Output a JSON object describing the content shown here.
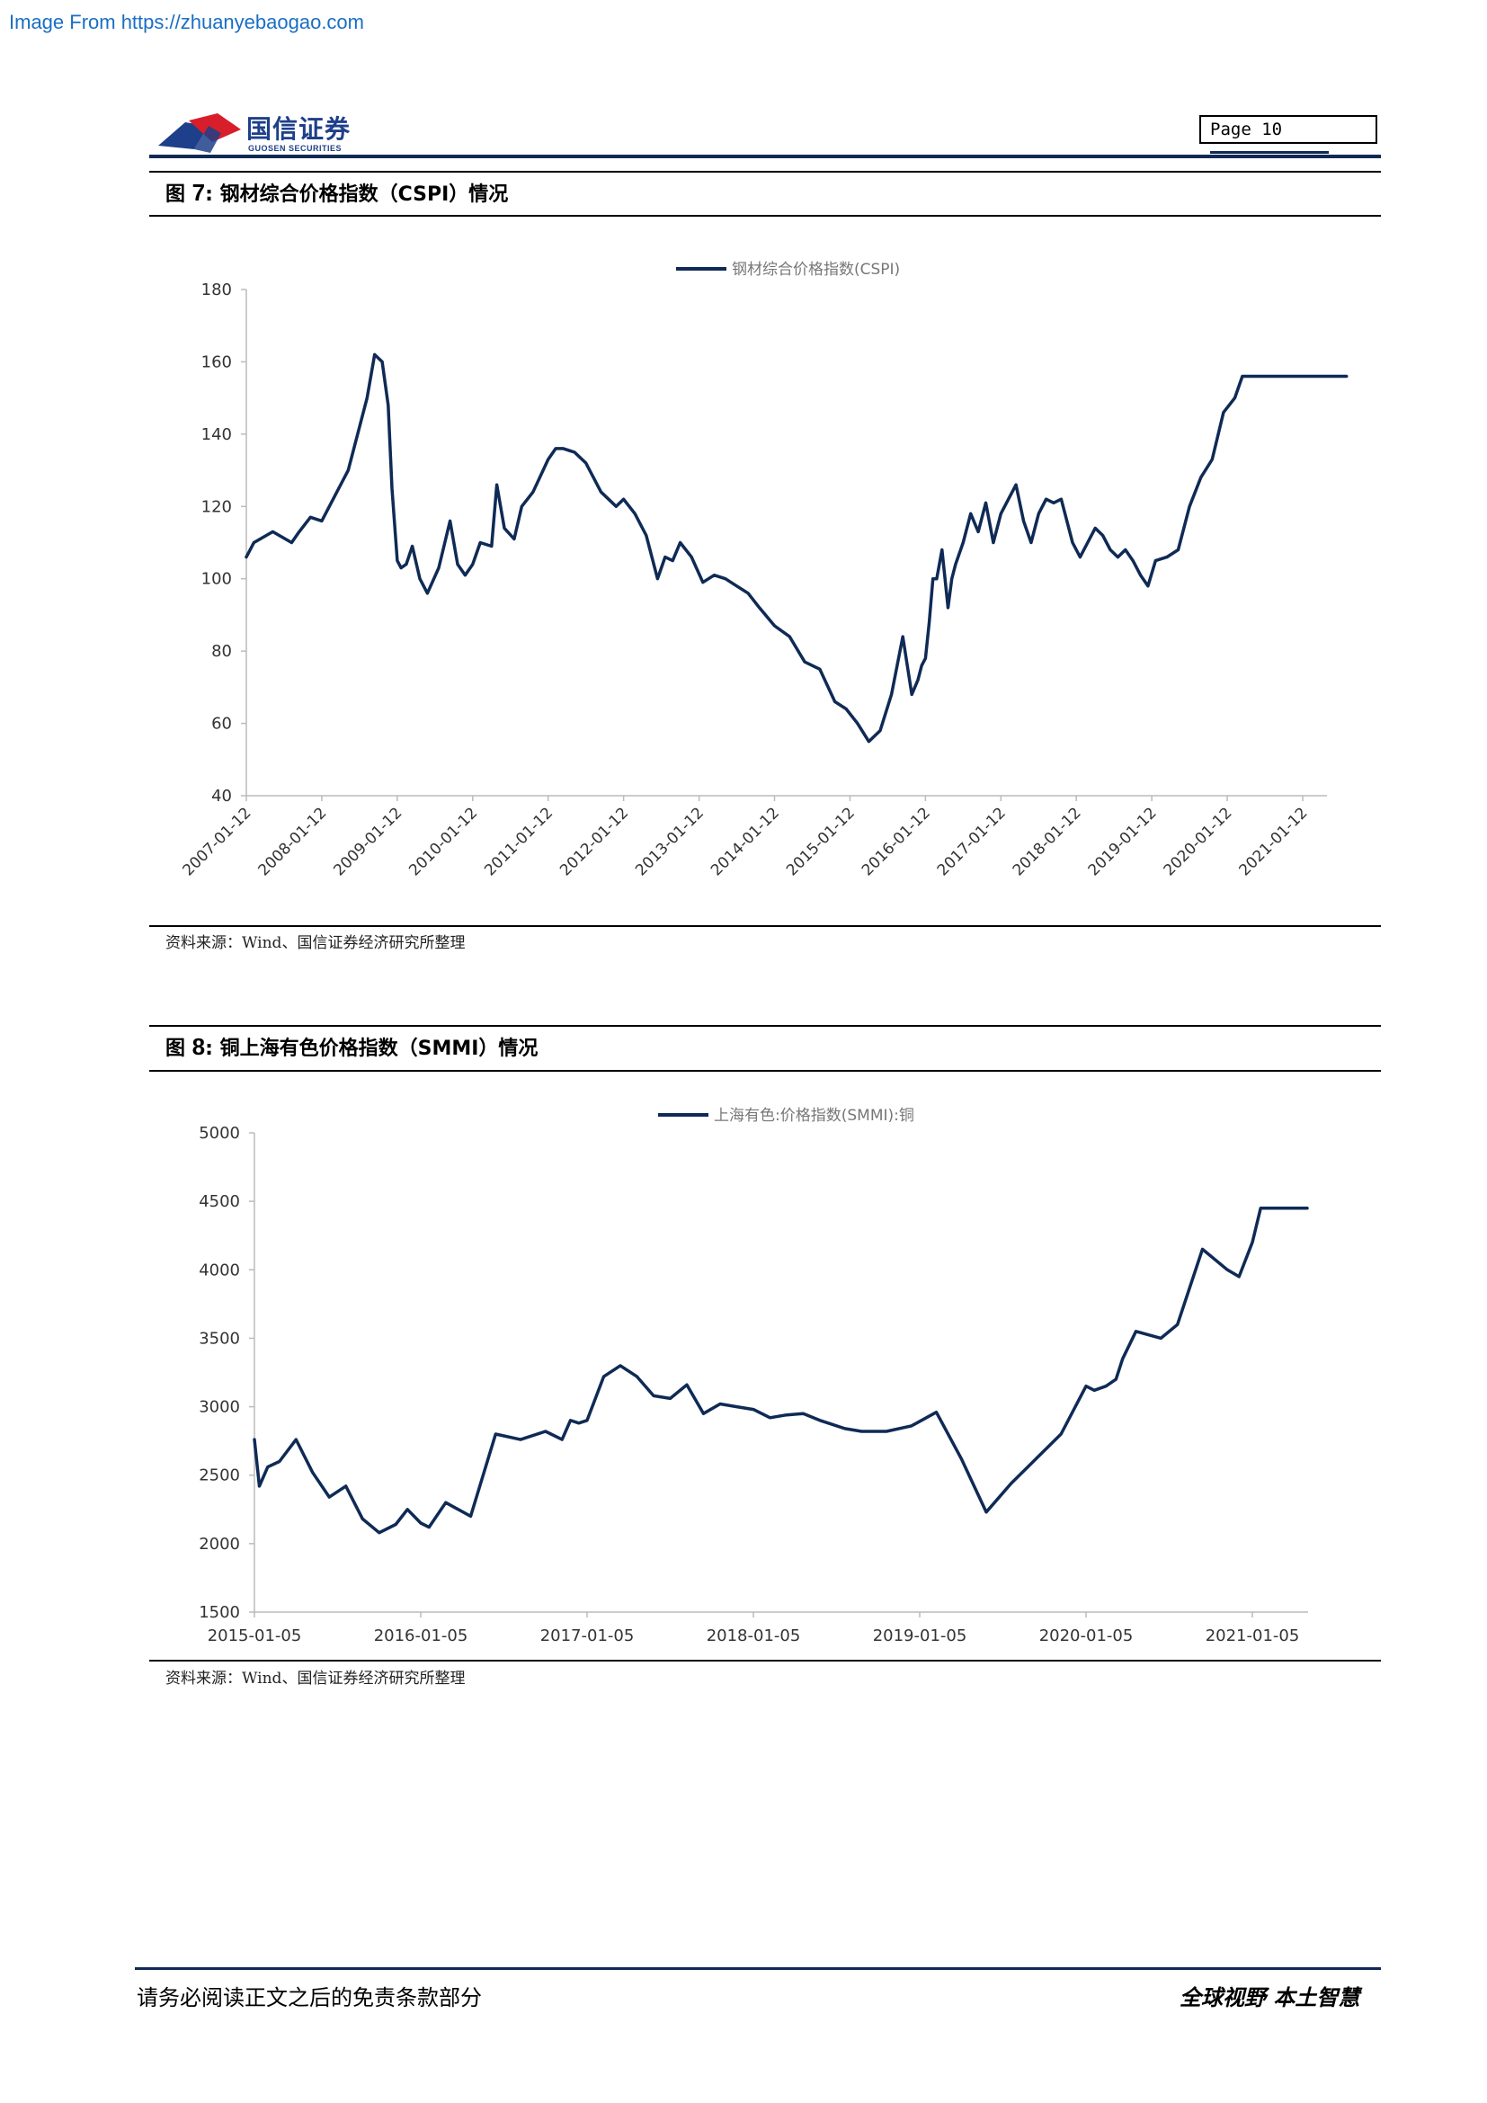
{
  "banner": "Image From https://zhuanyebaogao.com",
  "header": {
    "logo_cn": "国信证券",
    "logo_en": "GUOSEN SECURITIES",
    "page_label": "Page  10"
  },
  "figures": [
    {
      "title_prefix": "图 ",
      "title_num": "7",
      "title_text": ":  钢材综合价格指数（CSPI）情况",
      "source": "资料来源：Wind、国信证券经济研究所整理"
    },
    {
      "title_prefix": "图 ",
      "title_num": "8",
      "title_text": ":  铜上海有色价格指数（SMMI）情况",
      "source": "资料来源：Wind、国信证券经济研究所整理"
    }
  ],
  "chart_data": [
    {
      "type": "line",
      "title": "",
      "series": [
        {
          "name": "钢材综合价格指数(CSPI)",
          "color": "#0f2a55",
          "x": [
            2007.0,
            2007.1,
            2007.35,
            2007.6,
            2007.7,
            2007.85,
            2008.0,
            2008.2,
            2008.35,
            2008.5,
            2008.6,
            2008.7,
            2008.8,
            2008.88,
            2008.93,
            2009.0,
            2009.05,
            2009.12,
            2009.2,
            2009.3,
            2009.4,
            2009.55,
            2009.7,
            2009.8,
            2009.9,
            2010.0,
            2010.1,
            2010.25,
            2010.32,
            2010.42,
            2010.55,
            2010.65,
            2010.8,
            2011.0,
            2011.1,
            2011.2,
            2011.35,
            2011.5,
            2011.7,
            2011.8,
            2011.9,
            2012.0,
            2012.15,
            2012.3,
            2012.45,
            2012.55,
            2012.65,
            2012.75,
            2012.9,
            2013.05,
            2013.2,
            2013.35,
            2013.5,
            2013.65,
            2013.8,
            2014.0,
            2014.2,
            2014.4,
            2014.6,
            2014.8,
            2014.95,
            2015.1,
            2015.25,
            2015.4,
            2015.55,
            2015.7,
            2015.82,
            2015.9,
            2015.95,
            2016.0,
            2016.05,
            2016.1,
            2016.15,
            2016.22,
            2016.3,
            2016.35,
            2016.4,
            2016.5,
            2016.6,
            2016.7,
            2016.8,
            2016.9,
            2017.0,
            2017.1,
            2017.2,
            2017.3,
            2017.4,
            2017.5,
            2017.6,
            2017.7,
            2017.8,
            2017.95,
            2018.05,
            2018.15,
            2018.25,
            2018.35,
            2018.45,
            2018.55,
            2018.65,
            2018.75,
            2018.85,
            2018.95,
            2019.05,
            2019.2,
            2019.35,
            2019.5,
            2019.65,
            2019.8,
            2019.95,
            2020.1,
            2020.2,
            2020.35,
            2020.5,
            2020.6,
            2020.75,
            2020.9,
            2021.0,
            2021.1,
            2021.15,
            2021.25,
            2021.3,
            2021.38,
            2021.45,
            2021.5,
            2021.55,
            2021.58
          ],
          "values": [
            106,
            110,
            113,
            110,
            113,
            117,
            116,
            124,
            130,
            142,
            150,
            162,
            160,
            148,
            125,
            105,
            103,
            104,
            109,
            100,
            96,
            103,
            116,
            104,
            101,
            104,
            110,
            109,
            126,
            114,
            111,
            120,
            124,
            133,
            136,
            136,
            135,
            132,
            124,
            122,
            120,
            122,
            118,
            112,
            100,
            106,
            105,
            110,
            106,
            99,
            101,
            100,
            98,
            96,
            92,
            87,
            84,
            77,
            75,
            66,
            64,
            60,
            55,
            58,
            68,
            84,
            68,
            72,
            76,
            78,
            88,
            100,
            100,
            108,
            92,
            100,
            104,
            110,
            118,
            113,
            121,
            110,
            118,
            122,
            126,
            116,
            110,
            118,
            122,
            121,
            122,
            110,
            106,
            110,
            114,
            112,
            108,
            106,
            108,
            105,
            101,
            98,
            105,
            106,
            108,
            120,
            128,
            133,
            146,
            150,
            156,
            156,
            156,
            156,
            156,
            156,
            156,
            156,
            156,
            156,
            156,
            156,
            156,
            156,
            156,
            156
          ]
        }
      ],
      "x_tick_labels": [
        "2007-01-12",
        "2008-01-12",
        "2009-01-12",
        "2010-01-12",
        "2011-01-12",
        "2012-01-12",
        "2013-01-12",
        "2014-01-12",
        "2015-01-12",
        "2016-01-12",
        "2017-01-12",
        "2018-01-12",
        "2019-01-12",
        "2020-01-12",
        "2021-01-12"
      ],
      "y_ticks": [
        40,
        60,
        80,
        100,
        120,
        140,
        160,
        180
      ],
      "ylim": [
        40,
        180
      ],
      "xlim": [
        2007.0,
        2021.58
      ],
      "legend": "top-center",
      "grid": false
    },
    {
      "type": "line",
      "title": "",
      "series": [
        {
          "name": "上海有色:价格指数(SMMI):铜",
          "color": "#0f2a55",
          "x": [
            2015.0,
            2015.03,
            2015.08,
            2015.15,
            2015.25,
            2015.35,
            2015.45,
            2015.55,
            2015.65,
            2015.75,
            2015.85,
            2015.92,
            2016.0,
            2016.05,
            2016.15,
            2016.3,
            2016.45,
            2016.6,
            2016.75,
            2016.85,
            2016.9,
            2016.95,
            2017.0,
            2017.1,
            2017.2,
            2017.3,
            2017.4,
            2017.5,
            2017.6,
            2017.7,
            2017.8,
            2017.9,
            2018.0,
            2018.1,
            2018.2,
            2018.3,
            2018.4,
            2018.45,
            2018.55,
            2018.65,
            2018.8,
            2018.95,
            2019.1,
            2019.25,
            2019.4,
            2019.55,
            2019.7,
            2019.85,
            2020.0,
            2020.05,
            2020.12,
            2020.18,
            2020.22,
            2020.3,
            2020.45,
            2020.55,
            2020.7,
            2020.85,
            2020.92,
            2021.0,
            2021.05,
            2021.12,
            2021.2,
            2021.28,
            2021.33
          ],
          "values": [
            2760,
            2420,
            2560,
            2600,
            2760,
            2520,
            2340,
            2420,
            2180,
            2080,
            2140,
            2250,
            2150,
            2120,
            2300,
            2200,
            2800,
            2760,
            2820,
            2760,
            2900,
            2880,
            2900,
            3220,
            3300,
            3220,
            3080,
            3060,
            3160,
            2950,
            3020,
            3000,
            2980,
            2920,
            2940,
            2950,
            2900,
            2880,
            2840,
            2820,
            2820,
            2860,
            2960,
            2620,
            2230,
            2440,
            2620,
            2800,
            3150,
            3120,
            3150,
            3200,
            3350,
            3550,
            3500,
            3600,
            4150,
            4000,
            3950,
            4200,
            4450,
            4450,
            4450,
            4450,
            4450
          ],
          "note_x_unit": "year"
        }
      ],
      "x_tick_labels": [
        "2015-01-05",
        "2016-01-05",
        "2017-01-05",
        "2018-01-05",
        "2019-01-05",
        "2020-01-05",
        "2021-01-05"
      ],
      "y_ticks": [
        1500,
        2000,
        2500,
        3000,
        3500,
        4000,
        4500,
        5000
      ],
      "ylim": [
        1500,
        5000
      ],
      "legend": "top-center",
      "grid": false
    }
  ],
  "footer": {
    "left": "请务必阅读正文之后的免责条款部分",
    "right": "全球视野    本土智慧"
  }
}
